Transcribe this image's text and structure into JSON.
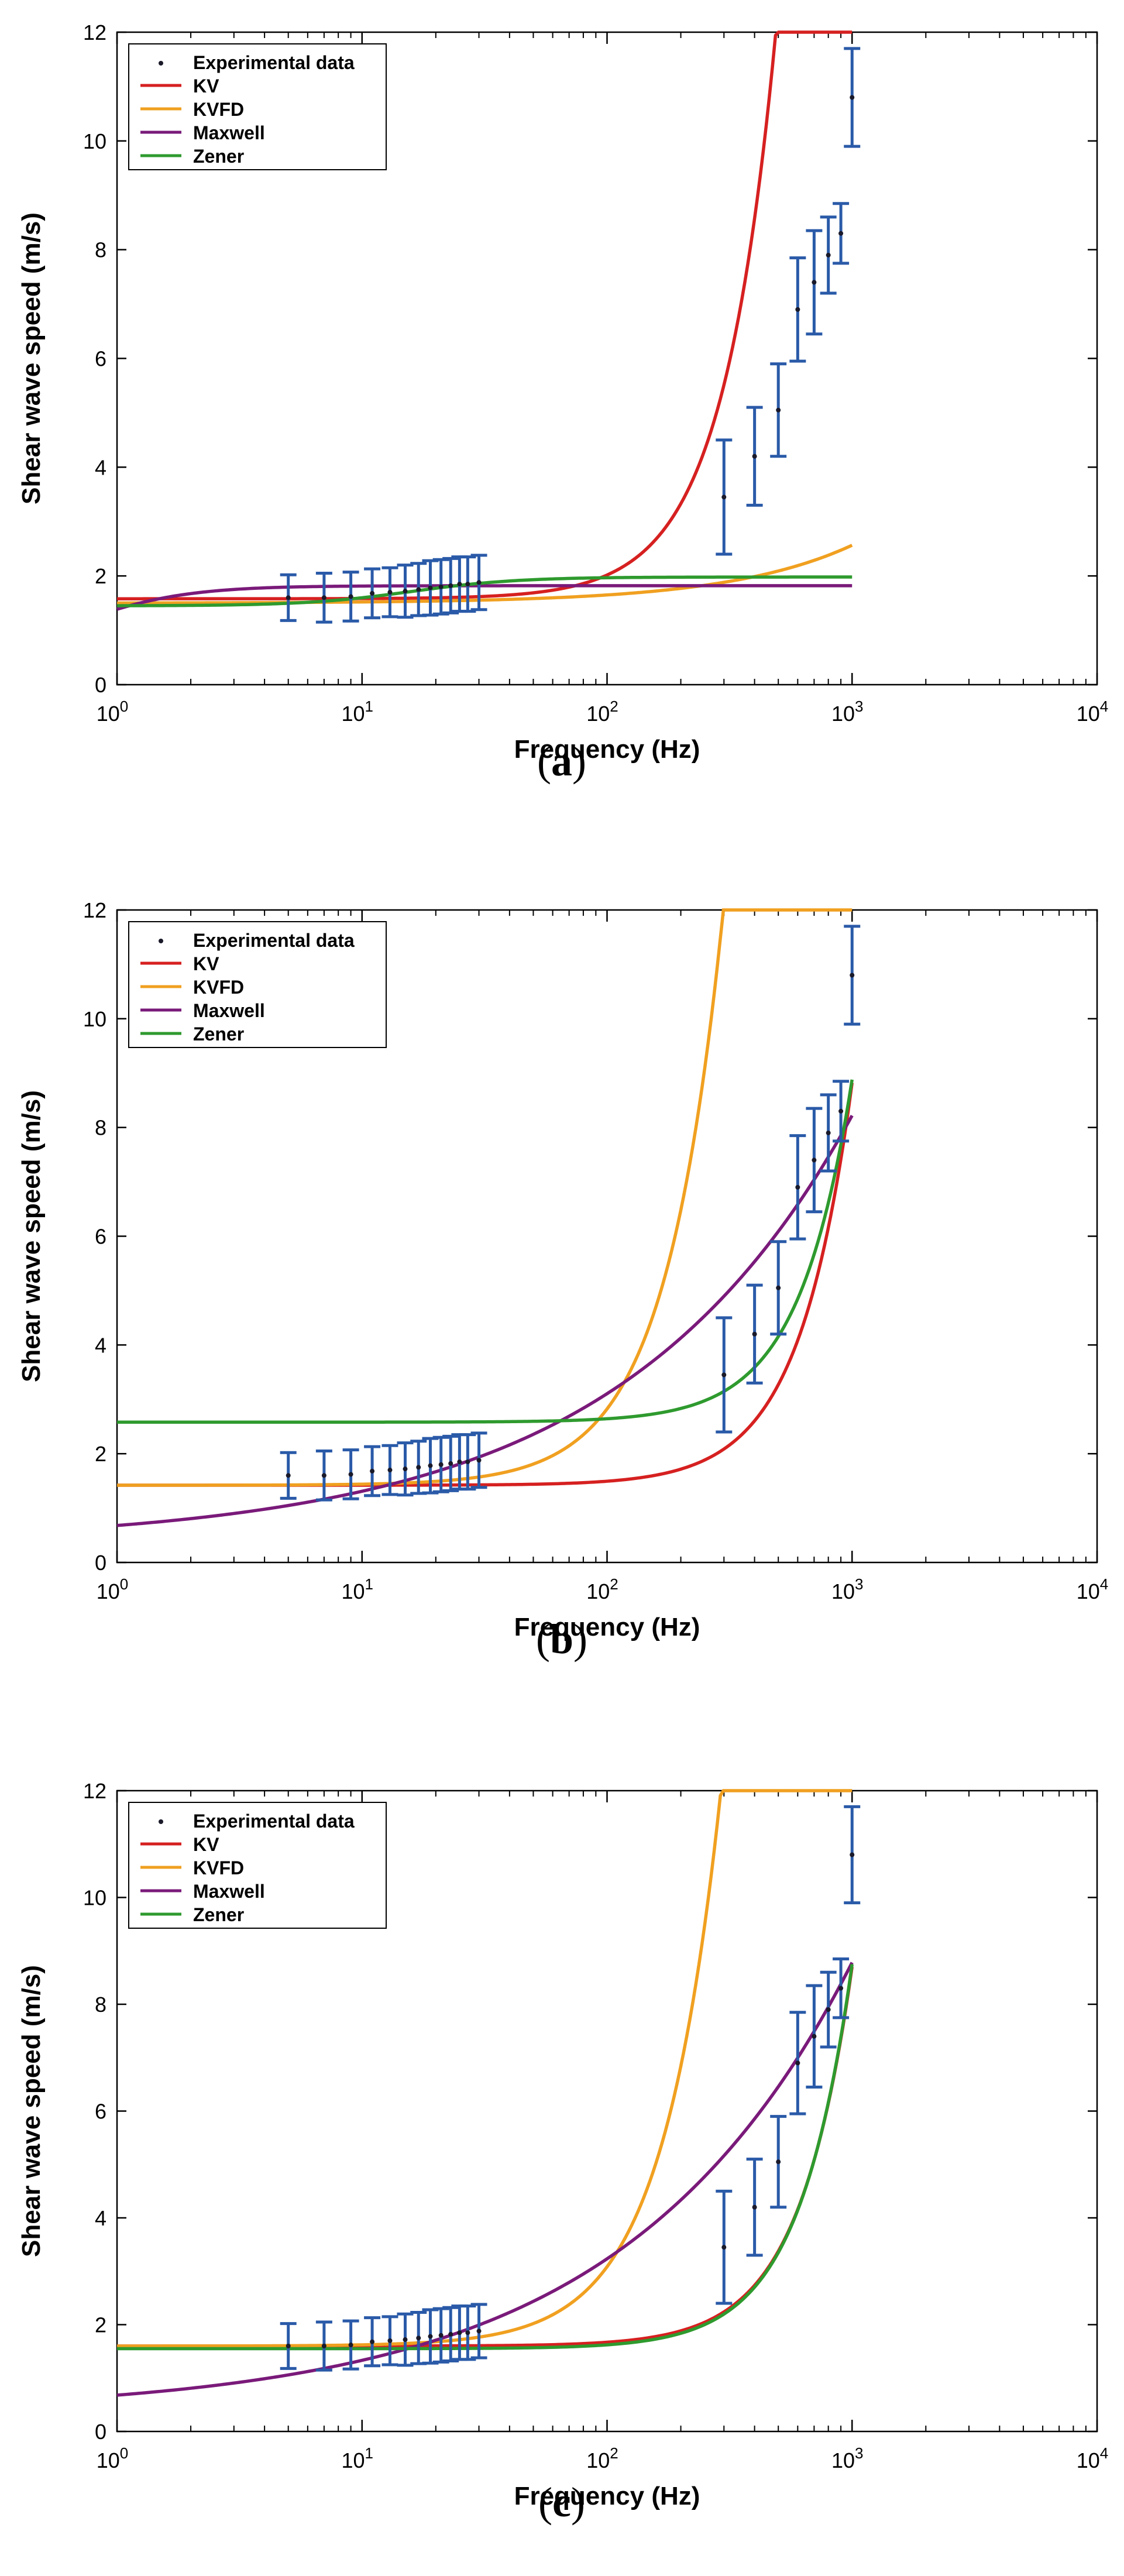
{
  "chart_data": [
    {
      "type": "line",
      "panel_label": "a",
      "caption_open": "(",
      "caption_close": ")",
      "xlabel": "Frequency (Hz)",
      "ylabel": "Shear wave speed (m/s)",
      "xscale": "log",
      "xlim": [
        1,
        10000
      ],
      "ylim": [
        0,
        12
      ],
      "x_ticks": [
        {
          "value": 1,
          "base": "10",
          "exp": "0"
        },
        {
          "value": 10,
          "base": "10",
          "exp": "1"
        },
        {
          "value": 100,
          "base": "10",
          "exp": "2"
        },
        {
          "value": 1000,
          "base": "10",
          "exp": "3"
        },
        {
          "value": 10000,
          "base": "10",
          "exp": "4"
        }
      ],
      "y_ticks": [
        0,
        2,
        4,
        6,
        8,
        10,
        12
      ],
      "legend_position": "top-left",
      "legend": [
        "Experimental data",
        "KV",
        "KVFD",
        "Maxwell",
        "Zener"
      ],
      "experimental": [
        {
          "x": 5,
          "y": 1.6,
          "err": 0.42
        },
        {
          "x": 7,
          "y": 1.6,
          "err": 0.45
        },
        {
          "x": 9,
          "y": 1.62,
          "err": 0.45
        },
        {
          "x": 11,
          "y": 1.68,
          "err": 0.45
        },
        {
          "x": 13,
          "y": 1.7,
          "err": 0.45
        },
        {
          "x": 15,
          "y": 1.72,
          "err": 0.48
        },
        {
          "x": 17,
          "y": 1.75,
          "err": 0.48
        },
        {
          "x": 19,
          "y": 1.78,
          "err": 0.5
        },
        {
          "x": 21,
          "y": 1.8,
          "err": 0.5
        },
        {
          "x": 23,
          "y": 1.82,
          "err": 0.5
        },
        {
          "x": 25,
          "y": 1.85,
          "err": 0.5
        },
        {
          "x": 27,
          "y": 1.85,
          "err": 0.5
        },
        {
          "x": 30,
          "y": 1.88,
          "err": 0.5
        },
        {
          "x": 300,
          "y": 3.45,
          "err": 1.05
        },
        {
          "x": 400,
          "y": 4.2,
          "err": 0.9
        },
        {
          "x": 500,
          "y": 5.05,
          "err": 0.85
        },
        {
          "x": 600,
          "y": 6.9,
          "err": 0.95
        },
        {
          "x": 700,
          "y": 7.4,
          "err": 0.95
        },
        {
          "x": 800,
          "y": 7.9,
          "err": 0.7
        },
        {
          "x": 900,
          "y": 8.3,
          "err": 0.55
        },
        {
          "x": 1000,
          "y": 10.8,
          "err": 0.9
        }
      ],
      "series": [
        {
          "name": "KV",
          "color": "#d62020",
          "model": "kv",
          "params": {
            "c0": 1.58,
            "a": 4.37e-05
          }
        },
        {
          "name": "KVFD",
          "color": "#f0a020",
          "model": "frac",
          "params": {
            "c0": 1.5,
            "b": 0.003,
            "beta": 0.85
          }
        },
        {
          "name": "Maxwell",
          "color": "#7a1a7a",
          "model": "maxwell",
          "params": {
            "c0": 1.82,
            "fc": 0.85
          }
        },
        {
          "name": "Zener",
          "color": "#2e9a2e",
          "model": "zener",
          "params": {
            "c0": 1.45,
            "cinf": 1.98,
            "fc": 16
          }
        }
      ]
    },
    {
      "type": "line",
      "panel_label": "b",
      "caption_open": "(",
      "caption_close": ")",
      "xlabel": "Frequency (Hz)",
      "ylabel": "Shear wave speed (m/s)",
      "xscale": "log",
      "xlim": [
        1,
        10000
      ],
      "ylim": [
        0,
        12
      ],
      "x_ticks": [
        {
          "value": 1,
          "base": "10",
          "exp": "0"
        },
        {
          "value": 10,
          "base": "10",
          "exp": "1"
        },
        {
          "value": 100,
          "base": "10",
          "exp": "2"
        },
        {
          "value": 1000,
          "base": "10",
          "exp": "3"
        },
        {
          "value": 10000,
          "base": "10",
          "exp": "4"
        }
      ],
      "y_ticks": [
        0,
        2,
        4,
        6,
        8,
        10,
        12
      ],
      "legend_position": "top-left",
      "legend": [
        "Experimental data",
        "KV",
        "KVFD",
        "Maxwell",
        "Zener"
      ],
      "experimental": [
        {
          "x": 5,
          "y": 1.6,
          "err": 0.42
        },
        {
          "x": 7,
          "y": 1.6,
          "err": 0.45
        },
        {
          "x": 9,
          "y": 1.62,
          "err": 0.45
        },
        {
          "x": 11,
          "y": 1.68,
          "err": 0.45
        },
        {
          "x": 13,
          "y": 1.7,
          "err": 0.45
        },
        {
          "x": 15,
          "y": 1.72,
          "err": 0.48
        },
        {
          "x": 17,
          "y": 1.75,
          "err": 0.48
        },
        {
          "x": 19,
          "y": 1.78,
          "err": 0.5
        },
        {
          "x": 21,
          "y": 1.8,
          "err": 0.5
        },
        {
          "x": 23,
          "y": 1.82,
          "err": 0.5
        },
        {
          "x": 25,
          "y": 1.85,
          "err": 0.5
        },
        {
          "x": 27,
          "y": 1.85,
          "err": 0.5
        },
        {
          "x": 30,
          "y": 1.88,
          "err": 0.5
        },
        {
          "x": 300,
          "y": 3.45,
          "err": 1.05
        },
        {
          "x": 400,
          "y": 4.2,
          "err": 0.9
        },
        {
          "x": 500,
          "y": 5.05,
          "err": 0.85
        },
        {
          "x": 600,
          "y": 6.9,
          "err": 0.95
        },
        {
          "x": 700,
          "y": 7.4,
          "err": 0.95
        },
        {
          "x": 800,
          "y": 7.9,
          "err": 0.7
        },
        {
          "x": 900,
          "y": 8.3,
          "err": 0.55
        },
        {
          "x": 1000,
          "y": 10.8,
          "err": 0.9
        }
      ],
      "series": [
        {
          "name": "KV",
          "color": "#d62020",
          "model": "kv",
          "params": {
            "c0": 1.42,
            "a": 7.4e-06
          }
        },
        {
          "name": "KVFD",
          "color": "#f0a020",
          "model": "frac",
          "params": {
            "c0": 1.42,
            "b": 0.00028,
            "beta": 1.85
          }
        },
        {
          "name": "Maxwell",
          "color": "#7a1a7a",
          "model": "power",
          "params": {
            "c0": 0.34,
            "b": 0.34,
            "p": 0.455
          }
        },
        {
          "name": "Zener",
          "color": "#2e9a2e",
          "model": "kv",
          "params": {
            "c0": 2.58,
            "a": 6.3e-06
          }
        }
      ]
    },
    {
      "type": "line",
      "panel_label": "c",
      "caption_open": "(",
      "caption_close": ")",
      "xlabel": "Frequency (Hz)",
      "ylabel": "Shear wave speed (m/s)",
      "xscale": "log",
      "xlim": [
        1,
        10000
      ],
      "ylim": [
        0,
        12
      ],
      "x_ticks": [
        {
          "value": 1,
          "base": "10",
          "exp": "0"
        },
        {
          "value": 10,
          "base": "10",
          "exp": "1"
        },
        {
          "value": 100,
          "base": "10",
          "exp": "2"
        },
        {
          "value": 1000,
          "base": "10",
          "exp": "3"
        },
        {
          "value": 10000,
          "base": "10",
          "exp": "4"
        }
      ],
      "y_ticks": [
        0,
        2,
        4,
        6,
        8,
        10,
        12
      ],
      "legend_position": "top-left",
      "legend": [
        "Experimental data",
        "KV",
        "KVFD",
        "Maxwell",
        "Zener"
      ],
      "experimental": [
        {
          "x": 5,
          "y": 1.6,
          "err": 0.42
        },
        {
          "x": 7,
          "y": 1.6,
          "err": 0.45
        },
        {
          "x": 9,
          "y": 1.62,
          "err": 0.45
        },
        {
          "x": 11,
          "y": 1.68,
          "err": 0.45
        },
        {
          "x": 13,
          "y": 1.7,
          "err": 0.45
        },
        {
          "x": 15,
          "y": 1.72,
          "err": 0.48
        },
        {
          "x": 17,
          "y": 1.75,
          "err": 0.48
        },
        {
          "x": 19,
          "y": 1.78,
          "err": 0.5
        },
        {
          "x": 21,
          "y": 1.8,
          "err": 0.5
        },
        {
          "x": 23,
          "y": 1.82,
          "err": 0.5
        },
        {
          "x": 25,
          "y": 1.85,
          "err": 0.5
        },
        {
          "x": 27,
          "y": 1.85,
          "err": 0.5
        },
        {
          "x": 30,
          "y": 1.88,
          "err": 0.5
        },
        {
          "x": 300,
          "y": 3.45,
          "err": 1.05
        },
        {
          "x": 400,
          "y": 4.2,
          "err": 0.9
        },
        {
          "x": 500,
          "y": 5.05,
          "err": 0.85
        },
        {
          "x": 600,
          "y": 6.9,
          "err": 0.95
        },
        {
          "x": 700,
          "y": 7.4,
          "err": 0.95
        },
        {
          "x": 800,
          "y": 7.9,
          "err": 0.7
        },
        {
          "x": 900,
          "y": 8.3,
          "err": 0.55
        },
        {
          "x": 1000,
          "y": 10.8,
          "err": 0.9
        }
      ],
      "series": [
        {
          "name": "KV",
          "color": "#d62020",
          "model": "kv",
          "params": {
            "c0": 1.6,
            "a": 7.1e-06
          }
        },
        {
          "name": "KVFD",
          "color": "#f0a020",
          "model": "frac",
          "params": {
            "c0": 1.6,
            "b": 0.00034,
            "beta": 1.82
          }
        },
        {
          "name": "Maxwell",
          "color": "#7a1a7a",
          "model": "power",
          "params": {
            "c0": 0.34,
            "b": 0.34,
            "p": 0.465
          }
        },
        {
          "name": "Zener",
          "color": "#2e9a2e",
          "model": "kv",
          "params": {
            "c0": 1.55,
            "a": 7.2e-06
          }
        }
      ]
    }
  ]
}
